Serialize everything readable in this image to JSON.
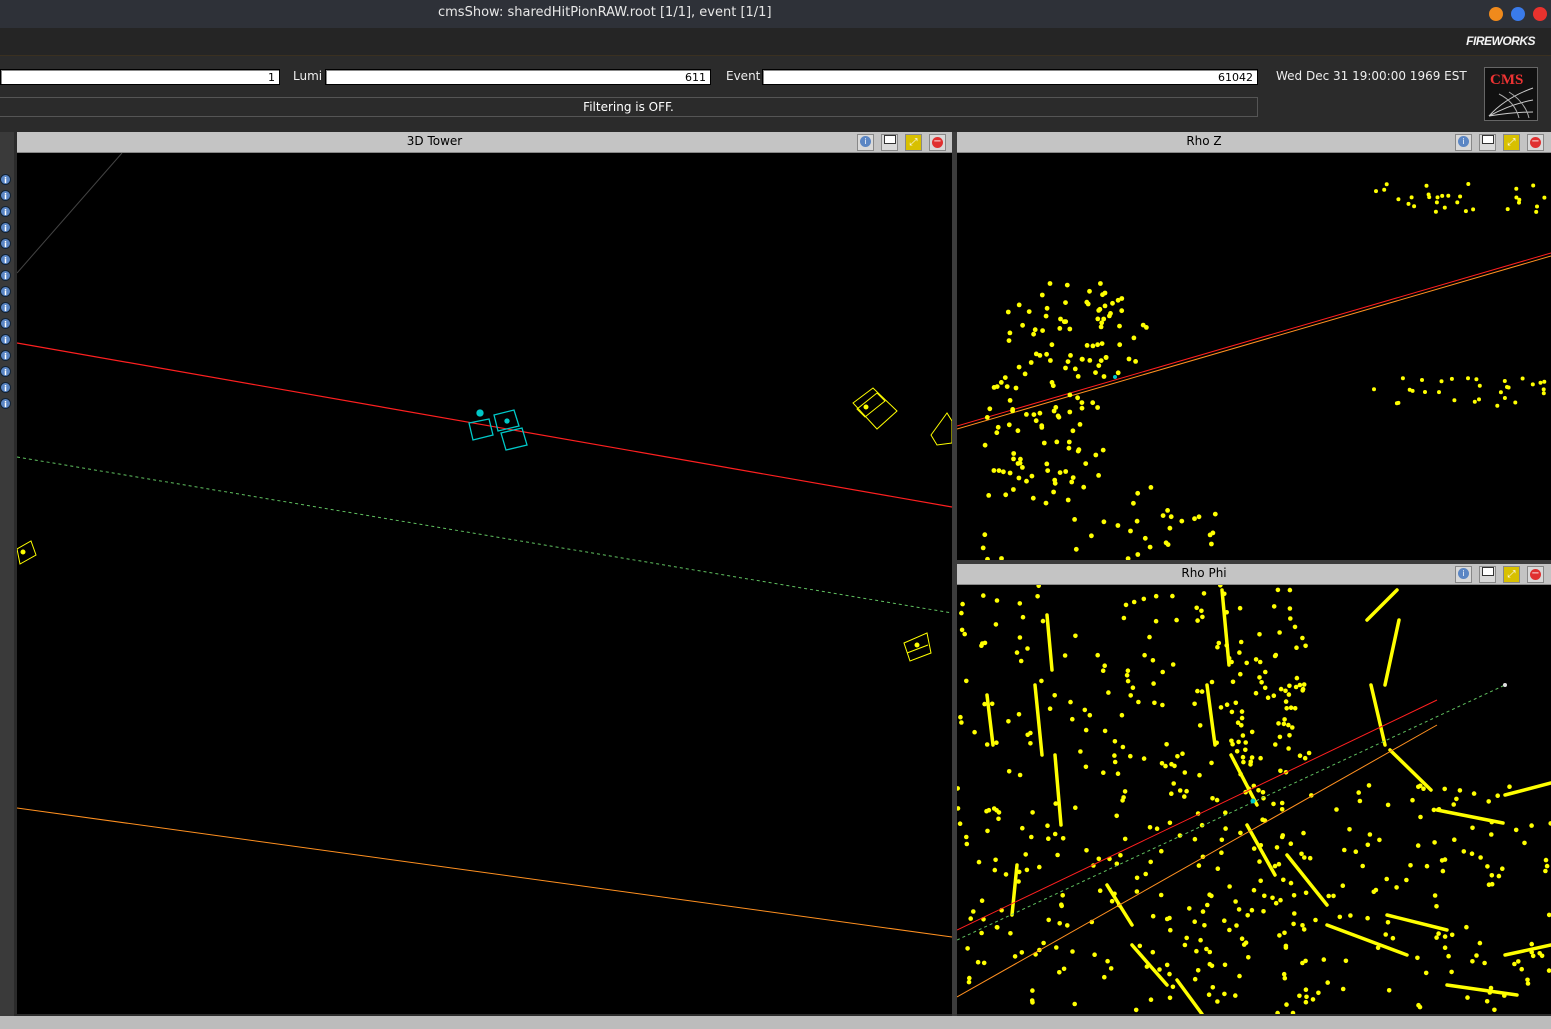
{
  "window": {
    "title": "cmsShow: sharedHitPionRAW.root [1/1], event [1/1]"
  },
  "brand": {
    "fireworks": "FIREWORKS",
    "cms": "CMS"
  },
  "toolbar": {
    "run_value": "1",
    "lumi_label": "Lumi",
    "lumi_value": "611",
    "event_label": "Event",
    "event_value": "61042",
    "datetime": "Wed Dec 31 19:00:00 1969 EST",
    "filter_status": "Filtering is OFF."
  },
  "views": {
    "tower3d": {
      "title": "3D Tower"
    },
    "rhoz": {
      "title": "Rho Z"
    },
    "rhophi": {
      "title": "Rho Phi"
    }
  },
  "icons": {
    "info": "info-icon",
    "undock": "undock-icon",
    "maximize": "maximize-icon",
    "close": "close-icon"
  },
  "colors": {
    "hits": "#ffff00",
    "track_red": "#ff2020",
    "track_orange": "#ff9020",
    "track_green_dashed": "#60c060",
    "calo_cyan": "#00c8c8",
    "close_btn": "#e03030",
    "info_btn": "#5b86c4",
    "maximize_btn": "#d8c000"
  }
}
